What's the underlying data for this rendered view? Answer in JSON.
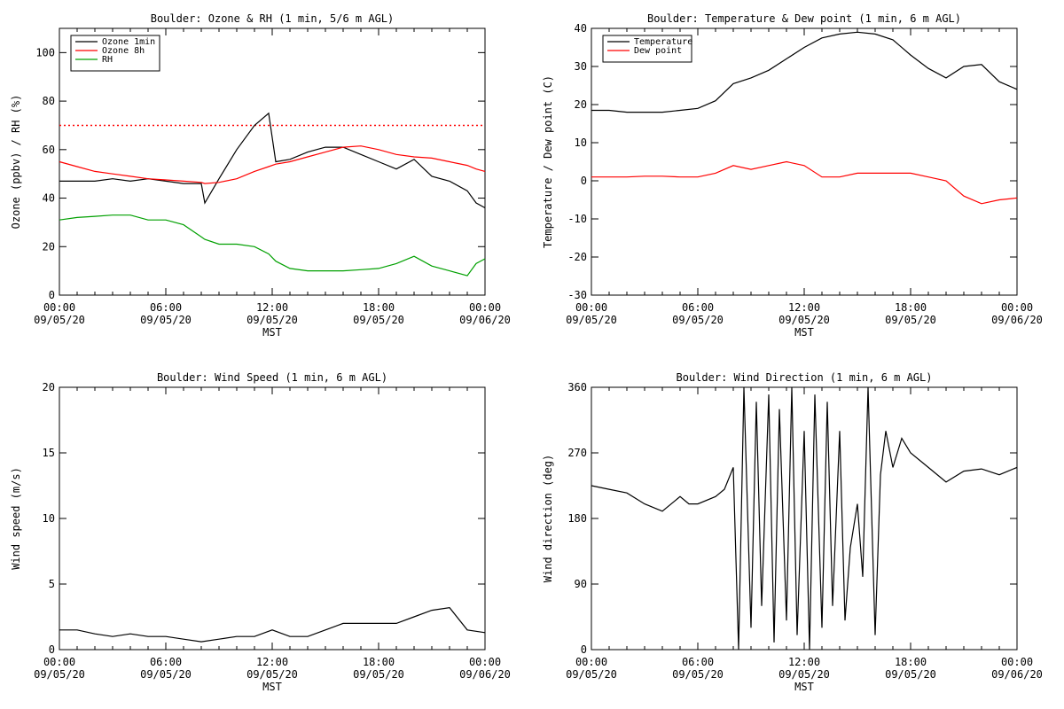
{
  "chart_data": [
    {
      "type": "line",
      "title": "Boulder: Ozone & RH (1 min, 5/6 m AGL)",
      "xlabel": "MST",
      "ylabel": "Ozone (ppbv) / RH (%)",
      "xlim": [
        "09/05/20 00:00",
        "09/06/20 00:00"
      ],
      "ylim": [
        0,
        110
      ],
      "yticks": [
        0,
        20,
        40,
        60,
        80,
        100
      ],
      "xticks": [
        {
          "time": "00:00",
          "date": "09/05/20"
        },
        {
          "time": "06:00",
          "date": "09/05/20"
        },
        {
          "time": "12:00",
          "date": "09/05/20"
        },
        {
          "time": "18:00",
          "date": "09/05/20"
        },
        {
          "time": "00:00",
          "date": "09/06/20"
        }
      ],
      "x_hours": [
        0,
        1,
        2,
        3,
        4,
        5,
        6,
        7,
        8,
        8.2,
        9,
        10,
        11,
        11.8,
        12.2,
        13,
        14,
        15,
        16,
        17,
        18,
        19,
        20,
        21,
        22,
        23,
        23.5,
        24
      ],
      "reference_line": {
        "value": 70,
        "color": "#ff0000",
        "style": "dotted"
      },
      "legend": {
        "position": "top-left"
      },
      "series": [
        {
          "name": "Ozone 1min",
          "color": "#000000",
          "values": [
            47,
            47,
            47,
            48,
            47,
            48,
            47,
            46,
            46,
            38,
            48,
            60,
            70,
            75,
            55,
            56,
            59,
            61,
            61,
            58,
            55,
            52,
            56,
            49,
            47,
            43,
            38,
            36
          ]
        },
        {
          "name": "Ozone 8h",
          "color": "#ff0000",
          "values": [
            55,
            53,
            51,
            50,
            49,
            48,
            47.5,
            47,
            46.5,
            46,
            46.5,
            48,
            51,
            53,
            54,
            55,
            57,
            59,
            61,
            61.5,
            60,
            58,
            57,
            56.5,
            55,
            53.5,
            52,
            51
          ]
        },
        {
          "name": "RH",
          "color": "#00a000",
          "values": [
            31,
            32,
            32.5,
            33,
            33,
            31,
            31,
            29,
            24,
            23,
            21,
            21,
            20,
            17,
            14,
            11,
            10,
            10,
            10,
            10.5,
            11,
            13,
            16,
            12,
            10,
            8,
            13,
            15
          ]
        }
      ]
    },
    {
      "type": "line",
      "title": "Boulder: Temperature & Dew point (1 min, 6 m AGL)",
      "xlabel": "MST",
      "ylabel": "Temperature / Dew point (C)",
      "xlim": [
        "09/05/20 00:00",
        "09/06/20 00:00"
      ],
      "ylim": [
        -30,
        40
      ],
      "yticks": [
        -30,
        -20,
        -10,
        0,
        10,
        20,
        30,
        40
      ],
      "xticks": [
        {
          "time": "00:00",
          "date": "09/05/20"
        },
        {
          "time": "06:00",
          "date": "09/05/20"
        },
        {
          "time": "12:00",
          "date": "09/05/20"
        },
        {
          "time": "18:00",
          "date": "09/05/20"
        },
        {
          "time": "00:00",
          "date": "09/06/20"
        }
      ],
      "x_hours": [
        0,
        1,
        2,
        3,
        4,
        5,
        6,
        7,
        8,
        9,
        10,
        11,
        12,
        13,
        14,
        15,
        16,
        17,
        18,
        19,
        20,
        21,
        22,
        23,
        24
      ],
      "legend": {
        "position": "top-left"
      },
      "series": [
        {
          "name": "Temperature",
          "color": "#000000",
          "values": [
            18.5,
            18.5,
            18,
            18,
            18,
            18.5,
            19,
            21,
            25.5,
            27,
            29,
            32,
            35,
            37.5,
            38.5,
            39,
            38.5,
            37,
            33,
            29.5,
            27,
            30,
            30.5,
            26,
            24
          ]
        },
        {
          "name": "Dew point",
          "color": "#ff0000",
          "values": [
            1,
            1,
            1,
            1.2,
            1.2,
            1,
            1,
            2,
            4,
            3,
            4,
            5,
            4,
            1,
            1,
            2,
            2,
            2,
            2,
            1,
            0,
            -4,
            -6,
            -5,
            -4.5
          ]
        }
      ]
    },
    {
      "type": "line",
      "title": "Boulder: Wind Speed (1 min, 6 m AGL)",
      "xlabel": "MST",
      "ylabel": "Wind speed (m/s)",
      "xlim": [
        "09/05/20 00:00",
        "09/06/20 00:00"
      ],
      "ylim": [
        0,
        20
      ],
      "yticks": [
        0,
        5,
        10,
        15,
        20
      ],
      "xticks": [
        {
          "time": "00:00",
          "date": "09/05/20"
        },
        {
          "time": "06:00",
          "date": "09/05/20"
        },
        {
          "time": "12:00",
          "date": "09/05/20"
        },
        {
          "time": "18:00",
          "date": "09/05/20"
        },
        {
          "time": "00:00",
          "date": "09/06/20"
        }
      ],
      "x_hours": [
        0,
        1,
        2,
        3,
        4,
        5,
        6,
        7,
        8,
        9,
        10,
        11,
        12,
        13,
        14,
        15,
        16,
        17,
        18,
        19,
        20,
        21,
        22,
        23,
        24
      ],
      "series": [
        {
          "name": "",
          "color": "#000000",
          "values": [
            1.5,
            1.5,
            1.2,
            1,
            1.2,
            1,
            1,
            0.8,
            0.6,
            0.8,
            1,
            1,
            1.5,
            1,
            1,
            1.5,
            2,
            2,
            2,
            2,
            2.5,
            3,
            3.2,
            1.5,
            1.3
          ]
        }
      ]
    },
    {
      "type": "line",
      "title": "Boulder: Wind Direction (1 min, 6 m AGL)",
      "xlabel": "MST",
      "ylabel": "Wind direction (deg)",
      "xlim": [
        "09/05/20 00:00",
        "09/06/20 00:00"
      ],
      "ylim": [
        0,
        360
      ],
      "yticks": [
        0,
        90,
        180,
        270,
        360
      ],
      "xticks": [
        {
          "time": "00:00",
          "date": "09/05/20"
        },
        {
          "time": "06:00",
          "date": "09/05/20"
        },
        {
          "time": "12:00",
          "date": "09/05/20"
        },
        {
          "time": "18:00",
          "date": "09/05/20"
        },
        {
          "time": "00:00",
          "date": "09/06/20"
        }
      ],
      "x_hours": [
        0,
        1,
        2,
        3,
        4,
        5,
        5.5,
        6,
        7,
        7.5,
        8,
        8.3,
        8.6,
        9,
        9.3,
        9.6,
        10,
        10.3,
        10.6,
        11,
        11.3,
        11.6,
        12,
        12.3,
        12.6,
        13,
        13.3,
        13.6,
        14,
        14.3,
        14.6,
        15,
        15.3,
        15.6,
        16,
        16.3,
        16.6,
        17,
        17.5,
        18,
        19,
        20,
        21,
        22,
        23,
        24
      ],
      "series": [
        {
          "name": "",
          "color": "#000000",
          "values": [
            225,
            220,
            215,
            200,
            190,
            210,
            200,
            200,
            210,
            220,
            250,
            0,
            360,
            30,
            340,
            60,
            350,
            10,
            330,
            40,
            360,
            20,
            300,
            0,
            350,
            30,
            340,
            60,
            300,
            40,
            140,
            200,
            100,
            360,
            20,
            240,
            300,
            250,
            290,
            270,
            250,
            230,
            245,
            248,
            240,
            250
          ]
        }
      ]
    }
  ]
}
